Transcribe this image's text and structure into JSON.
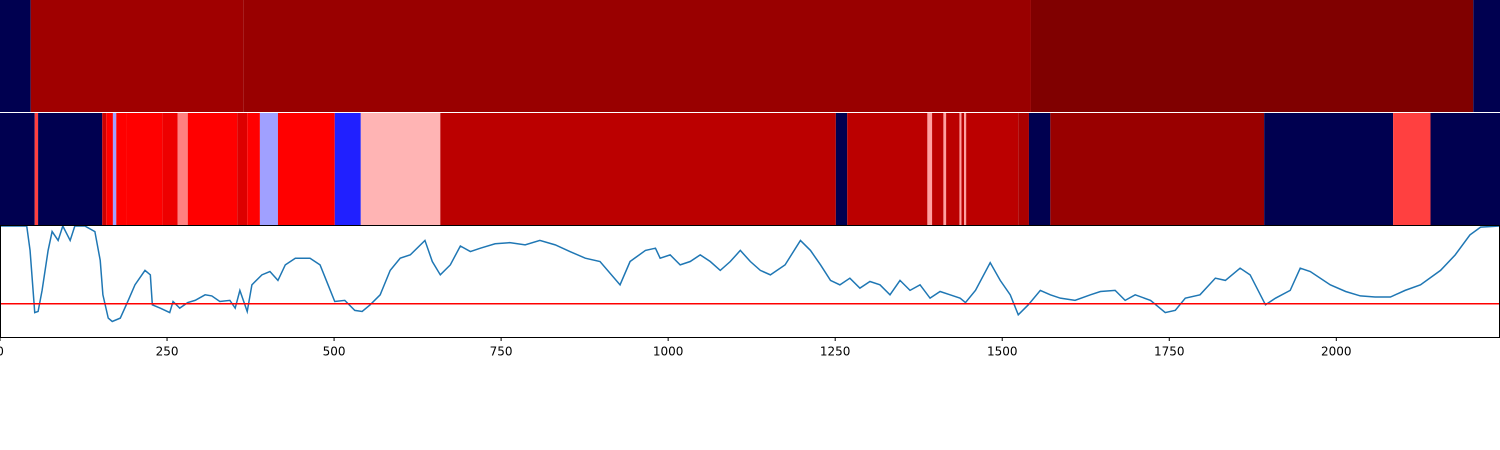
{
  "chart_data": [
    {
      "type": "strip",
      "xlim": [
        0,
        2245
      ],
      "edges": [
        0,
        46,
        364,
        1543,
        2205,
        2245
      ],
      "colors": [
        "#000050",
        "#a00000",
        "#990000",
        "#800000",
        "#000050"
      ]
    },
    {
      "type": "strip",
      "xlim": [
        0,
        2245
      ],
      "edges": [
        0,
        52,
        57,
        153,
        159,
        169,
        174,
        190,
        243,
        266,
        281,
        355,
        370,
        389,
        416,
        501,
        540,
        659,
        1251,
        1268,
        1388,
        1395,
        1412,
        1416,
        1436,
        1439,
        1443,
        1446,
        1524,
        1540,
        1572,
        1892,
        2085,
        2141,
        2245
      ],
      "colors": [
        "#000050",
        "#ff4040",
        "#000050",
        "#cc0000",
        "#ff0000",
        "#a0a0ff",
        "#ff0000",
        "#ff0000",
        "#ee0000",
        "#ff8080",
        "#ff0000",
        "#dd0000",
        "#ff0000",
        "#a0a0ff",
        "#ff0000",
        "#2020ff",
        "#ffb4b4",
        "#bb0000",
        "#000050",
        "#bb0000",
        "#ffa0a0",
        "#bb0000",
        "#ffa0a0",
        "#bb0000",
        "#ffa0a0",
        "#bb0000",
        "#ffa0a0",
        "#bb0000",
        "#aa0000",
        "#000050",
        "#990000",
        "#000050",
        "#ff4040",
        "#000050"
      ]
    },
    {
      "type": "line",
      "xlim": [
        0,
        2245
      ],
      "ylim": [
        0,
        1
      ],
      "xticks": [
        0,
        250,
        500,
        750,
        1000,
        1250,
        1500,
        1750,
        2000
      ],
      "threshold": 0.3,
      "threshold_color": "#ff0000",
      "series": [
        {
          "color": "#1f77b4",
          "x": [
            0,
            40,
            45,
            52,
            57,
            63,
            72,
            78,
            87,
            94,
            105,
            112,
            127,
            142,
            150,
            154,
            162,
            168,
            180,
            192,
            202,
            217,
            225,
            228,
            240,
            254,
            259,
            269,
            281,
            292,
            307,
            317,
            329,
            344,
            352,
            359,
            370,
            377,
            392,
            404,
            416,
            427,
            442,
            464,
            479,
            491,
            501,
            516,
            531,
            542,
            554,
            569,
            584,
            599,
            614,
            636,
            647,
            659,
            674,
            689,
            704,
            719,
            741,
            763,
            786,
            808,
            831,
            853,
            876,
            898,
            928,
            943,
            966,
            981,
            988,
            1003,
            1018,
            1033,
            1048,
            1063,
            1078,
            1093,
            1108,
            1123,
            1138,
            1153,
            1175,
            1198,
            1213,
            1228,
            1243,
            1257,
            1272,
            1287,
            1302,
            1317,
            1332,
            1347,
            1362,
            1377,
            1392,
            1407,
            1422,
            1437,
            1445,
            1460,
            1482,
            1497,
            1512,
            1524,
            1539,
            1557,
            1572,
            1587,
            1609,
            1632,
            1647,
            1669,
            1684,
            1699,
            1722,
            1744,
            1759,
            1774,
            1796,
            1819,
            1834,
            1856,
            1871,
            1894,
            1909,
            1931,
            1946,
            1961,
            1991,
            2014,
            2036,
            2058,
            2081,
            2103,
            2126,
            2156,
            2178,
            2200,
            2216,
            2245
          ],
          "values": [
            1.0,
            1.0,
            0.78,
            0.22,
            0.23,
            0.42,
            0.78,
            0.95,
            0.87,
            1.0,
            0.87,
            1.0,
            1.0,
            0.95,
            0.69,
            0.38,
            0.17,
            0.14,
            0.17,
            0.33,
            0.47,
            0.6,
            0.56,
            0.29,
            0.26,
            0.22,
            0.32,
            0.26,
            0.31,
            0.33,
            0.38,
            0.37,
            0.32,
            0.33,
            0.26,
            0.42,
            0.23,
            0.47,
            0.56,
            0.59,
            0.51,
            0.65,
            0.71,
            0.71,
            0.65,
            0.47,
            0.32,
            0.33,
            0.24,
            0.23,
            0.29,
            0.38,
            0.6,
            0.71,
            0.74,
            0.87,
            0.68,
            0.56,
            0.65,
            0.82,
            0.77,
            0.8,
            0.84,
            0.85,
            0.83,
            0.87,
            0.83,
            0.77,
            0.71,
            0.68,
            0.47,
            0.68,
            0.78,
            0.8,
            0.71,
            0.74,
            0.65,
            0.68,
            0.74,
            0.68,
            0.6,
            0.68,
            0.78,
            0.68,
            0.6,
            0.56,
            0.65,
            0.87,
            0.78,
            0.65,
            0.51,
            0.47,
            0.53,
            0.44,
            0.5,
            0.47,
            0.38,
            0.51,
            0.42,
            0.47,
            0.35,
            0.41,
            0.38,
            0.35,
            0.31,
            0.42,
            0.67,
            0.51,
            0.38,
            0.2,
            0.29,
            0.42,
            0.38,
            0.35,
            0.33,
            0.38,
            0.41,
            0.42,
            0.33,
            0.38,
            0.33,
            0.22,
            0.24,
            0.35,
            0.38,
            0.53,
            0.51,
            0.62,
            0.56,
            0.29,
            0.35,
            0.42,
            0.62,
            0.59,
            0.47,
            0.41,
            0.37,
            0.36,
            0.36,
            0.42,
            0.47,
            0.6,
            0.74,
            0.92,
            0.99,
            1.0
          ]
        }
      ]
    }
  ]
}
